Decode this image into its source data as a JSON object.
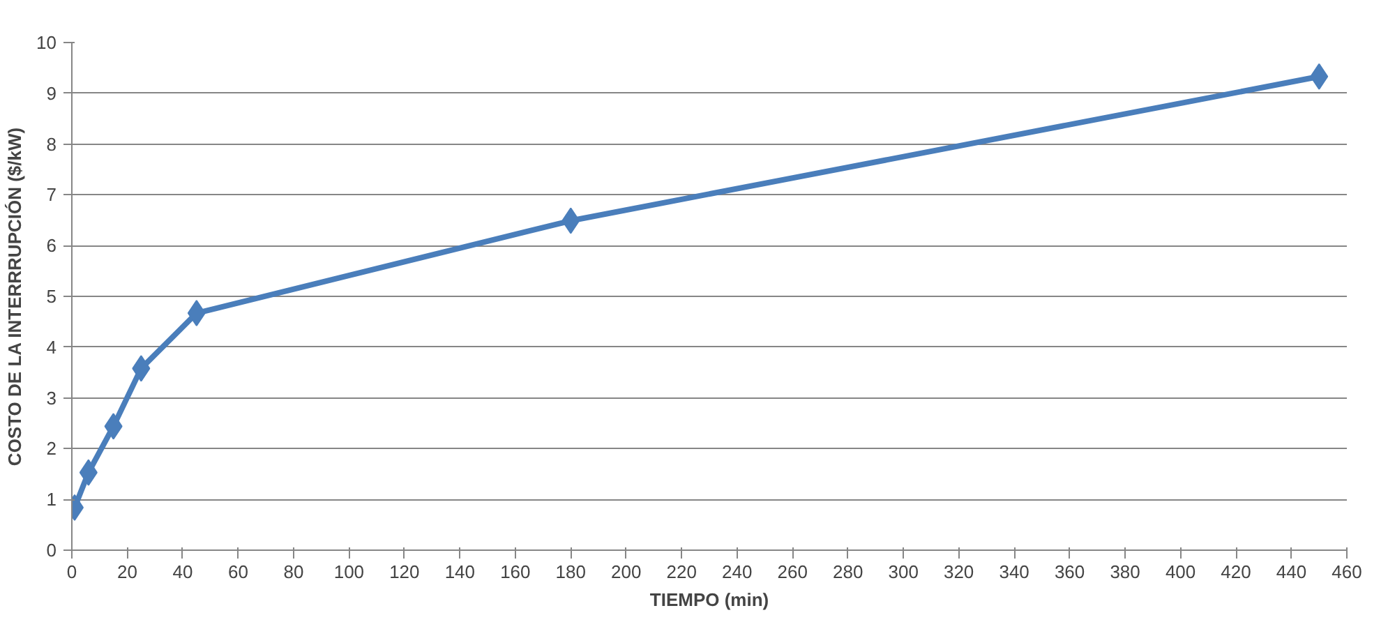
{
  "chart_data": {
    "type": "line",
    "xlabel": "TIEMPO (min)",
    "ylabel": "COSTO DE LA INTERRRUPCIÓN ($/kW)",
    "x": [
      1,
      6,
      15,
      25,
      45,
      180,
      450
    ],
    "series": [
      {
        "color": "#4a7ebb",
        "values": [
          0.84,
          1.53,
          2.44,
          3.58,
          4.67,
          6.49,
          9.33
        ]
      }
    ],
    "xlim": [
      0,
      460
    ],
    "xticks": [
      0,
      20,
      40,
      60,
      80,
      100,
      120,
      140,
      160,
      180,
      200,
      220,
      240,
      260,
      280,
      300,
      320,
      340,
      360,
      380,
      400,
      420,
      440,
      460
    ],
    "ylim": [
      0,
      10
    ],
    "yticks": [
      0,
      1,
      2,
      3,
      4,
      5,
      6,
      7,
      8,
      9,
      10
    ],
    "grid": "y",
    "marker": "diamond",
    "line_style": "solid"
  }
}
